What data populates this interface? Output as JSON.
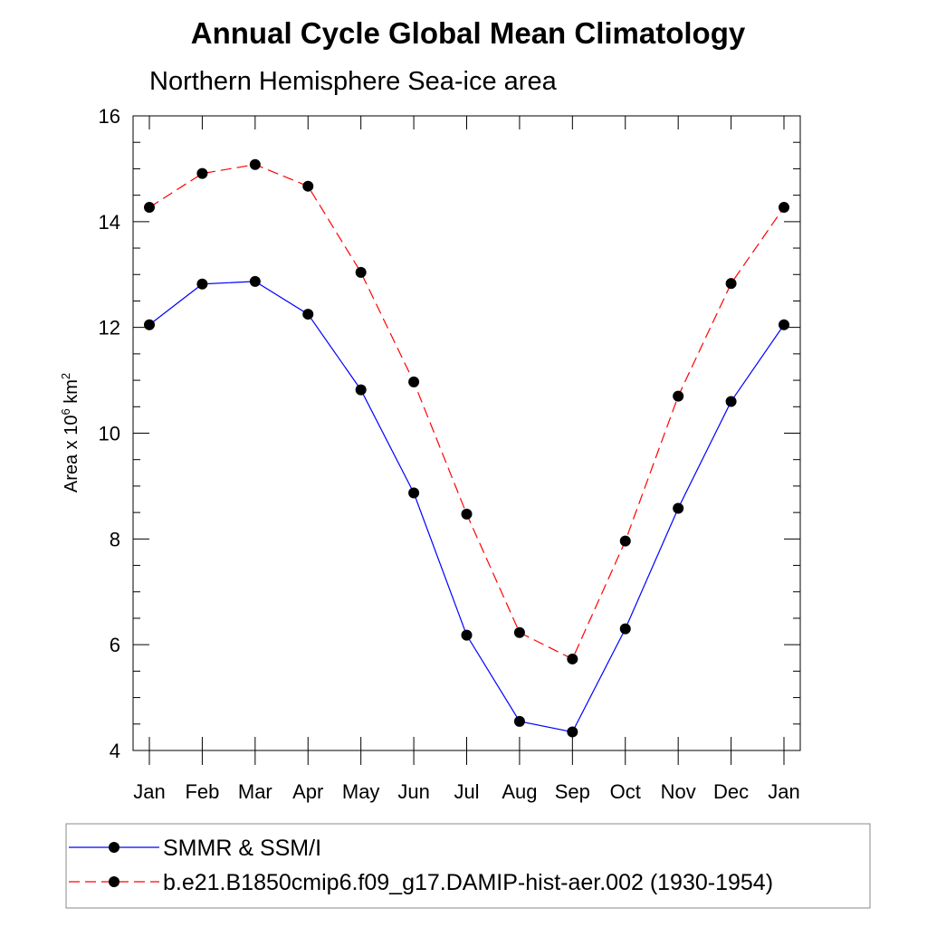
{
  "chart_data": {
    "type": "line",
    "title": "Annual Cycle Global Mean Climatology",
    "subtitle": "Northern Hemisphere Sea-ice area",
    "ylabel": {
      "base": "Area x 10",
      "exp": "6",
      "unit": " km",
      "unit_exp": "2"
    },
    "xlabel": "",
    "categories": [
      "Jan",
      "Feb",
      "Mar",
      "Apr",
      "May",
      "Jun",
      "Jul",
      "Aug",
      "Sep",
      "Oct",
      "Nov",
      "Dec",
      "Jan"
    ],
    "ylim": [
      4,
      16
    ],
    "yticks": [
      4,
      6,
      8,
      10,
      12,
      14,
      16
    ],
    "y_minor_step": 0.5,
    "grid": false,
    "legend_position": "bottom",
    "series": [
      {
        "name": "SMMR & SSM/I",
        "color": "#0000ff",
        "dash": "solid",
        "marker": "filled-circle",
        "values": [
          12.05,
          12.82,
          12.87,
          12.25,
          10.82,
          8.87,
          6.18,
          4.55,
          4.35,
          6.3,
          8.58,
          10.6,
          12.05
        ]
      },
      {
        "name": "b.e21.B1850cmip6.f09_g17.DAMIP-hist-aer.002 (1930-1954)",
        "color": "#ff0000",
        "dash": "dashed",
        "marker": "filled-circle",
        "values": [
          14.27,
          14.91,
          15.08,
          14.67,
          13.04,
          10.97,
          8.47,
          6.23,
          5.73,
          7.96,
          10.7,
          12.83,
          14.27
        ]
      }
    ]
  }
}
